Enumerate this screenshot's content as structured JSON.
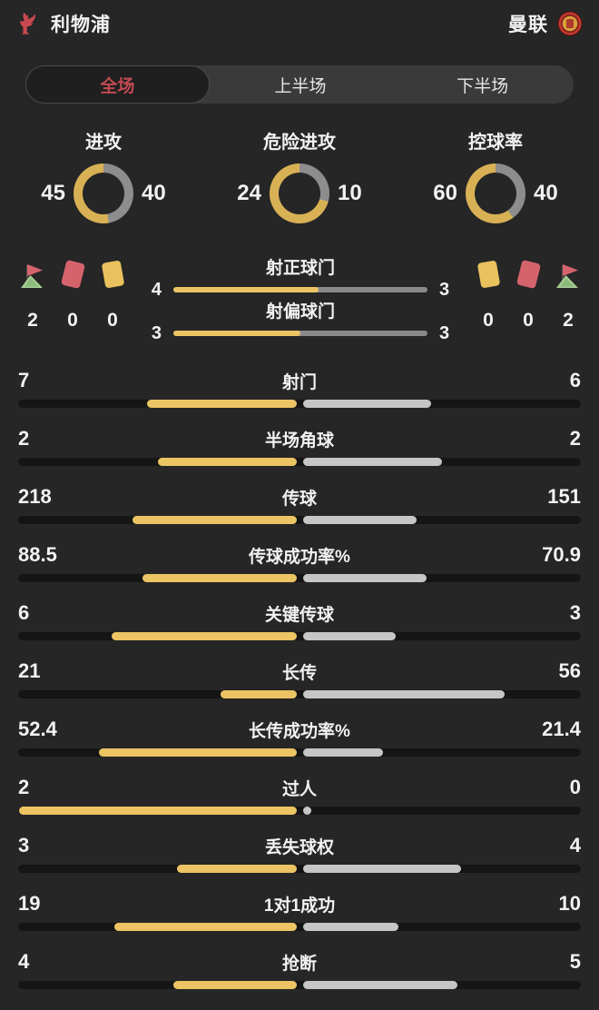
{
  "colors": {
    "background": "#262626",
    "track": "#151515",
    "home_bar": "#ecc464",
    "away_bar": "#c6c6c6",
    "donut_home": "#d9b155",
    "donut_away": "#8d8d8d",
    "shot_track": "#8a8a8a",
    "tab_active_text": "#c04a52",
    "red_card": "#d5636c",
    "yellow_card": "#e9c25e",
    "flag_green": "#a8cf97"
  },
  "header": {
    "home_team": "利物浦",
    "away_team": "曼联",
    "home_logo": "liverpool-crest",
    "away_logo": "manchester-united-crest"
  },
  "tabs": [
    {
      "label": "全场",
      "active": true
    },
    {
      "label": "上半场",
      "active": false
    },
    {
      "label": "下半场",
      "active": false
    }
  ],
  "donuts": [
    {
      "title": "进攻",
      "home": 45,
      "away": 40
    },
    {
      "title": "危险进攻",
      "home": 24,
      "away": 10
    },
    {
      "title": "控球率",
      "home": 60,
      "away": 40
    }
  ],
  "discipline": {
    "home": {
      "icons": [
        "corner-flag",
        "red-card",
        "yellow-card"
      ],
      "values": [
        2,
        0,
        0
      ]
    },
    "away": {
      "icons": [
        "yellow-card",
        "red-card",
        "corner-flag"
      ],
      "values": [
        0,
        0,
        2
      ]
    }
  },
  "shot_rows": [
    {
      "label": "射正球门",
      "home": 4,
      "away": 3
    },
    {
      "label": "射偏球门",
      "home": 3,
      "away": 3
    }
  ],
  "stats": [
    {
      "label": "射门",
      "home": 7,
      "away": 6
    },
    {
      "label": "半场角球",
      "home": 2,
      "away": 2
    },
    {
      "label": "传球",
      "home": 218,
      "away": 151
    },
    {
      "label": "传球成功率%",
      "home": 88.5,
      "away": 70.9
    },
    {
      "label": "关键传球",
      "home": 6,
      "away": 3
    },
    {
      "label": "长传",
      "home": 21,
      "away": 56
    },
    {
      "label": "长传成功率%",
      "home": 52.4,
      "away": 21.4
    },
    {
      "label": "过人",
      "home": 2,
      "away": 0
    },
    {
      "label": "丢失球权",
      "home": 3,
      "away": 4
    },
    {
      "label": "1对1成功",
      "home": 19,
      "away": 10
    },
    {
      "label": "抢断",
      "home": 4,
      "away": 5
    }
  ]
}
